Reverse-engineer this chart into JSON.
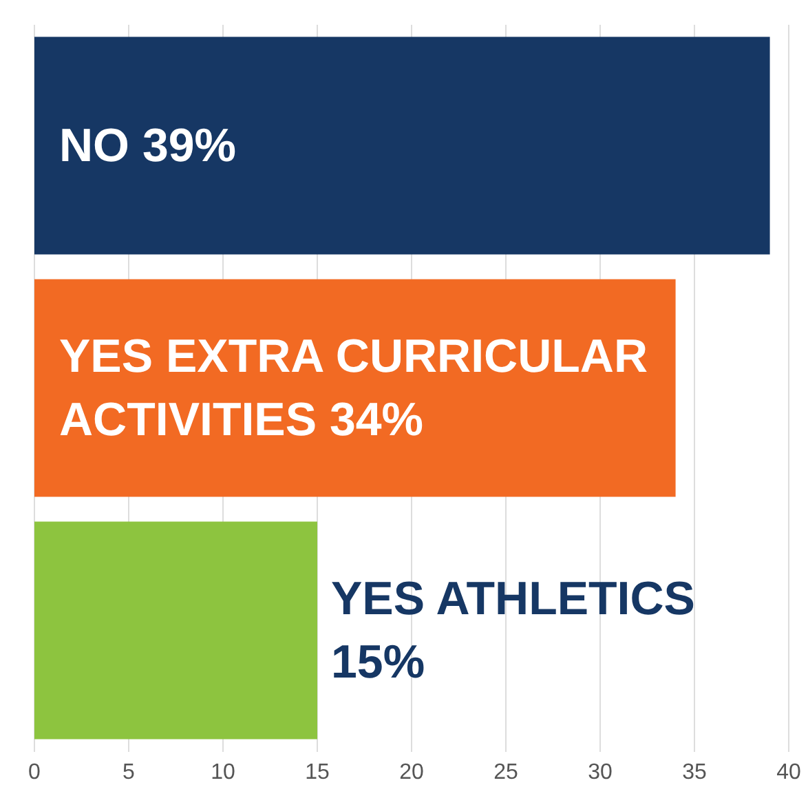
{
  "chart_data": {
    "type": "bar",
    "orientation": "horizontal",
    "categories": [
      "NO",
      "YES EXTRA CURRICULAR ACTIVITIES",
      "YES ATHLETICS"
    ],
    "values": [
      39,
      34,
      15
    ],
    "value_labels": [
      "39%",
      "34%",
      "15%"
    ],
    "colors": [
      "#163764",
      "#f26a23",
      "#8dc43f"
    ],
    "xlim": [
      0,
      40
    ],
    "xticks": [
      0,
      5,
      10,
      15,
      20,
      25,
      30,
      35,
      40
    ],
    "grid": "x",
    "tick_labels": "x"
  }
}
